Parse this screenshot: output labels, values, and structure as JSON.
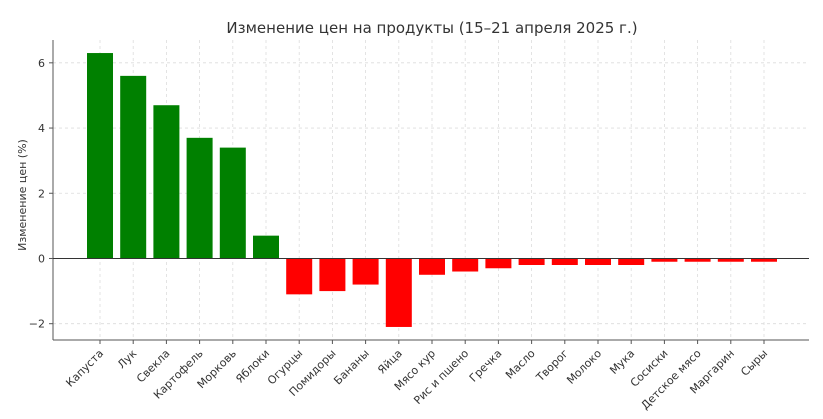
{
  "chart_data": {
    "type": "bar",
    "title": "Изменение цен на продукты (15–21 апреля 2025 г.)",
    "xlabel": "",
    "ylabel": "Изменение цен (%)",
    "ylim": [
      -2.5,
      6.7
    ],
    "yticks": [
      -2,
      0,
      2,
      4,
      6
    ],
    "ytick_labels": [
      "−2",
      "0",
      "2",
      "4",
      "6"
    ],
    "grid": true,
    "categories": [
      "Капуста",
      "Лук",
      "Свекла",
      "Картофель",
      "Морковь",
      "Яблоки",
      "Огурцы",
      "Помидоры",
      "Бананы",
      "Яйца",
      "Мясо кур",
      "Рис и пшено",
      "Гречка",
      "Масло",
      "Творог",
      "Молоко",
      "Мука",
      "Сосиски",
      "Детское мясо",
      "Маргарин",
      "Сыры"
    ],
    "values": [
      6.3,
      5.6,
      4.7,
      3.7,
      3.4,
      0.7,
      -1.1,
      -1.0,
      -0.8,
      -2.1,
      -0.5,
      -0.4,
      -0.3,
      -0.2,
      -0.2,
      -0.2,
      -0.2,
      -0.1,
      -0.1,
      -0.1,
      -0.1
    ],
    "colors": {
      "positive": "#008000",
      "negative": "#ff0000"
    }
  }
}
